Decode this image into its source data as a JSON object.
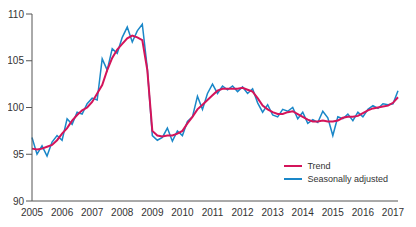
{
  "chart_data": {
    "type": "line",
    "categories": [
      "2005",
      null,
      null,
      null,
      null,
      null,
      "2006",
      null,
      null,
      null,
      null,
      null,
      "2007",
      null,
      null,
      null,
      null,
      null,
      "2008",
      null,
      null,
      null,
      null,
      null,
      "2009",
      null,
      null,
      null,
      null,
      null,
      "2010",
      null,
      null,
      null,
      null,
      null,
      "2011",
      null,
      null,
      null,
      null,
      null,
      "2012",
      null,
      null,
      null,
      null,
      null,
      "2013",
      null,
      null,
      null,
      null,
      null,
      "2014",
      null,
      null,
      null,
      null,
      null,
      "2015",
      null,
      null,
      null,
      null,
      null,
      "2016",
      null,
      null,
      null,
      null,
      null,
      "2017",
      null
    ],
    "series": [
      {
        "name": "Trend",
        "color": "#d4145a",
        "values": [
          95.6,
          95.5,
          95.6,
          95.8,
          96.0,
          96.5,
          97.2,
          97.8,
          98.6,
          99.2,
          99.7,
          100.0,
          100.6,
          101.5,
          102.4,
          104.0,
          105.3,
          106.2,
          106.8,
          107.4,
          107.7,
          107.5,
          107.2,
          104.0,
          97.5,
          97.0,
          96.9,
          97.0,
          97.0,
          97.2,
          97.5,
          98.3,
          99.0,
          99.8,
          100.3,
          100.8,
          101.3,
          101.8,
          102.0,
          102.0,
          102.0,
          102.0,
          102.1,
          101.9,
          101.7,
          101.0,
          100.2,
          99.8,
          99.5,
          99.3,
          99.3,
          99.5,
          99.6,
          99.3,
          99.0,
          98.7,
          98.5,
          98.5,
          98.6,
          98.5,
          98.5,
          98.6,
          98.9,
          99.0,
          99.0,
          99.1,
          99.4,
          99.7,
          99.9,
          100.0,
          100.1,
          100.2,
          100.5,
          101.1
        ]
      },
      {
        "name": "Seasonally adjusted",
        "color": "#1a87c8",
        "values": [
          96.8,
          95.0,
          95.9,
          94.8,
          96.3,
          97.0,
          96.5,
          98.8,
          98.2,
          99.5,
          99.3,
          100.4,
          101.0,
          100.8,
          105.2,
          104.0,
          106.3,
          105.8,
          107.5,
          108.6,
          107.0,
          108.2,
          108.9,
          104.2,
          97.0,
          96.5,
          96.8,
          97.8,
          96.4,
          97.5,
          97.0,
          98.5,
          99.0,
          101.2,
          99.8,
          101.5,
          102.5,
          101.5,
          102.3,
          101.9,
          102.3,
          101.7,
          102.2,
          101.5,
          102.0,
          100.5,
          99.5,
          100.3,
          99.2,
          99.0,
          99.8,
          99.6,
          100.0,
          98.8,
          99.5,
          98.3,
          98.7,
          98.4,
          99.6,
          98.9,
          97.0,
          99.0,
          98.8,
          99.3,
          98.6,
          99.5,
          99.0,
          99.8,
          100.2,
          99.9,
          100.4,
          100.3,
          100.4,
          101.8
        ]
      }
    ],
    "ylim": [
      90,
      110
    ],
    "yticks": [
      90,
      95,
      100,
      105,
      110
    ],
    "grid": false,
    "legend": "lower right"
  }
}
